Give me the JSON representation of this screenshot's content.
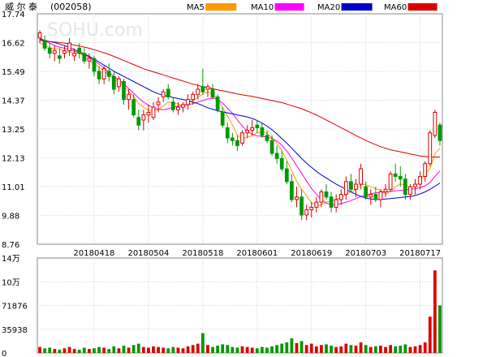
{
  "header": {
    "title": "威 尔 泰",
    "code": "(002058)"
  },
  "legend": [
    {
      "name": "MA5",
      "color": "#ff9900"
    },
    {
      "name": "MA10",
      "color": "#ff00ff"
    },
    {
      "name": "MA20",
      "color": "#0000cc"
    },
    {
      "name": "MA60",
      "color": "#dd0000"
    }
  ],
  "watermark": "SOHU.com",
  "colors": {
    "up": "#dd0000",
    "down": "#009900",
    "grid": "#d0d0d0",
    "axis": "#888888"
  },
  "chart_data": [
    {
      "type": "candlestick",
      "title": "",
      "yticks": [
        "17.74",
        "16.62",
        "15.49",
        "14.37",
        "13.25",
        "12.13",
        "11.01",
        "9.88",
        "8.76"
      ],
      "ytick_values": [
        17.74,
        16.62,
        15.49,
        14.37,
        13.25,
        12.13,
        11.01,
        9.88,
        8.76
      ],
      "ylim": [
        8.76,
        17.74
      ],
      "xtick_labels": [
        "20180418",
        "20180504",
        "20180518",
        "20180601",
        "20180619",
        "20180703",
        "20180717"
      ],
      "xtick_index": [
        11,
        22,
        33,
        44,
        55,
        66,
        77
      ],
      "ohlc": [
        [
          16.8,
          17.1,
          16.6,
          17.0
        ],
        [
          16.7,
          16.9,
          16.3,
          16.4
        ],
        [
          16.4,
          16.6,
          16.0,
          16.2
        ],
        [
          16.2,
          16.5,
          15.9,
          16.3
        ],
        [
          16.1,
          16.4,
          15.8,
          16.0
        ],
        [
          16.2,
          16.5,
          16.0,
          16.3
        ],
        [
          16.3,
          16.8,
          16.1,
          16.6
        ],
        [
          16.1,
          16.4,
          15.9,
          16.2
        ],
        [
          16.4,
          16.6,
          16.0,
          16.2
        ],
        [
          16.2,
          16.4,
          15.8,
          15.9
        ],
        [
          15.9,
          16.2,
          15.6,
          16.0
        ],
        [
          16.0,
          16.1,
          15.3,
          15.5
        ],
        [
          15.5,
          15.7,
          15.0,
          15.2
        ],
        [
          15.2,
          15.7,
          15.0,
          15.6
        ],
        [
          15.5,
          15.8,
          15.1,
          15.3
        ],
        [
          15.3,
          15.5,
          14.6,
          14.8
        ],
        [
          14.9,
          15.3,
          14.7,
          15.2
        ],
        [
          15.1,
          15.2,
          14.2,
          14.4
        ],
        [
          14.4,
          14.8,
          14.0,
          14.6
        ],
        [
          14.4,
          14.6,
          13.7,
          13.8
        ],
        [
          13.7,
          14.0,
          13.2,
          13.4
        ],
        [
          13.6,
          14.0,
          13.2,
          13.8
        ],
        [
          13.8,
          14.2,
          13.5,
          13.9
        ],
        [
          13.7,
          14.3,
          13.6,
          14.1
        ],
        [
          14.2,
          14.5,
          13.9,
          14.3
        ],
        [
          14.5,
          14.8,
          14.3,
          14.7
        ],
        [
          14.8,
          15.0,
          14.4,
          14.5
        ],
        [
          14.3,
          14.5,
          13.9,
          14.0
        ],
        [
          14.0,
          14.3,
          13.8,
          14.1
        ],
        [
          14.1,
          14.3,
          13.9,
          14.2
        ],
        [
          14.2,
          14.6,
          14.0,
          14.4
        ],
        [
          14.4,
          14.7,
          14.2,
          14.6
        ],
        [
          14.6,
          15.0,
          14.4,
          14.8
        ],
        [
          14.9,
          15.6,
          14.6,
          14.7
        ],
        [
          14.8,
          15.0,
          14.5,
          14.9
        ],
        [
          14.8,
          15.0,
          14.4,
          14.5
        ],
        [
          14.5,
          14.6,
          13.9,
          14.0
        ],
        [
          13.9,
          14.1,
          13.3,
          13.4
        ],
        [
          13.3,
          13.5,
          12.7,
          12.9
        ],
        [
          12.9,
          13.1,
          12.6,
          12.8
        ],
        [
          12.8,
          13.0,
          12.4,
          12.6
        ],
        [
          12.7,
          13.2,
          12.6,
          13.1
        ],
        [
          13.1,
          13.4,
          12.9,
          13.2
        ],
        [
          13.2,
          13.6,
          13.0,
          13.3
        ],
        [
          13.4,
          13.6,
          13.1,
          13.3
        ],
        [
          13.3,
          13.5,
          12.9,
          13.0
        ],
        [
          13.0,
          13.2,
          12.7,
          12.8
        ],
        [
          12.8,
          13.0,
          12.2,
          12.3
        ],
        [
          12.3,
          12.6,
          11.9,
          12.1
        ],
        [
          12.1,
          12.4,
          11.6,
          11.7
        ],
        [
          11.7,
          12.0,
          11.1,
          11.2
        ],
        [
          11.2,
          11.5,
          10.4,
          10.5
        ],
        [
          10.5,
          11.0,
          10.2,
          10.6
        ],
        [
          10.6,
          10.9,
          9.7,
          9.9
        ],
        [
          9.9,
          10.3,
          9.7,
          10.1
        ],
        [
          10.1,
          10.4,
          9.8,
          10.2
        ],
        [
          10.2,
          10.6,
          10.0,
          10.4
        ],
        [
          10.4,
          10.9,
          10.2,
          10.8
        ],
        [
          10.8,
          11.1,
          10.5,
          10.6
        ],
        [
          10.6,
          10.8,
          10.0,
          10.2
        ],
        [
          10.2,
          10.7,
          10.0,
          10.5
        ],
        [
          10.5,
          10.9,
          10.3,
          10.7
        ],
        [
          10.7,
          11.4,
          10.5,
          11.2
        ],
        [
          11.2,
          11.5,
          10.8,
          10.9
        ],
        [
          10.9,
          11.3,
          10.6,
          11.1
        ],
        [
          11.1,
          11.9,
          10.9,
          11.7
        ],
        [
          11.0,
          11.2,
          10.5,
          10.6
        ],
        [
          10.6,
          10.9,
          10.3,
          10.7
        ],
        [
          10.7,
          11.0,
          10.4,
          10.5
        ],
        [
          10.5,
          10.9,
          10.2,
          10.8
        ],
        [
          10.8,
          11.1,
          10.6,
          10.9
        ],
        [
          10.9,
          11.6,
          10.8,
          11.5
        ],
        [
          11.5,
          11.9,
          11.2,
          11.4
        ],
        [
          11.4,
          11.8,
          11.0,
          11.3
        ],
        [
          11.3,
          11.5,
          10.5,
          10.7
        ],
        [
          10.7,
          11.1,
          10.5,
          11.0
        ],
        [
          11.0,
          11.3,
          10.7,
          11.1
        ],
        [
          11.1,
          11.6,
          10.9,
          11.4
        ],
        [
          11.4,
          12.0,
          11.2,
          11.9
        ],
        [
          11.9,
          13.2,
          11.8,
          13.1
        ],
        [
          13.0,
          14.0,
          12.9,
          13.9
        ],
        [
          13.4,
          13.5,
          12.6,
          12.8
        ]
      ],
      "ma5": [
        16.6,
        16.5,
        16.42,
        16.36,
        16.38,
        16.28,
        16.24,
        16.2,
        16.18,
        16.1,
        15.92,
        15.8,
        15.66,
        15.52,
        15.35,
        15.2,
        15.06,
        14.9,
        14.72,
        14.52,
        14.24,
        14.1,
        13.98,
        13.96,
        14.0,
        14.15,
        14.3,
        14.26,
        14.22,
        14.18,
        14.24,
        14.36,
        14.5,
        14.6,
        14.7,
        14.62,
        14.4,
        14.1,
        13.76,
        13.4,
        13.0,
        12.86,
        12.92,
        13.0,
        13.1,
        13.14,
        13.08,
        12.92,
        12.68,
        12.4,
        12.04,
        11.62,
        11.22,
        10.9,
        10.64,
        10.38,
        10.26,
        10.3,
        10.4,
        10.44,
        10.52,
        10.56,
        10.72,
        10.8,
        10.88,
        11.1,
        11.08,
        11.0,
        10.92,
        10.88,
        10.72,
        10.82,
        10.98,
        11.12,
        11.04,
        10.98,
        11.0,
        11.2,
        11.5,
        11.7,
        12.3,
        12.5
      ],
      "ma10": [
        16.8,
        16.7,
        16.6,
        16.5,
        16.44,
        16.4,
        16.34,
        16.28,
        16.22,
        16.16,
        16.04,
        15.92,
        15.78,
        15.62,
        15.46,
        15.3,
        15.15,
        15.0,
        14.82,
        14.64,
        14.46,
        14.3,
        14.18,
        14.08,
        14.02,
        14.0,
        14.04,
        14.1,
        14.14,
        14.16,
        14.2,
        14.24,
        14.3,
        14.36,
        14.42,
        14.46,
        14.4,
        14.26,
        14.06,
        13.86,
        13.6,
        13.36,
        13.18,
        13.04,
        12.98,
        12.96,
        12.94,
        12.88,
        12.78,
        12.62,
        12.4,
        12.12,
        11.82,
        11.52,
        11.22,
        10.94,
        10.7,
        10.5,
        10.36,
        10.3,
        10.3,
        10.34,
        10.4,
        10.46,
        10.54,
        10.62,
        10.68,
        10.72,
        10.76,
        10.78,
        10.8,
        10.82,
        10.84,
        10.86,
        10.88,
        10.9,
        10.92,
        10.96,
        11.04,
        11.16,
        11.4,
        11.62
      ],
      "ma20": [
        16.75,
        16.7,
        16.66,
        16.62,
        16.56,
        16.5,
        16.42,
        16.34,
        16.26,
        16.18,
        16.08,
        15.98,
        15.86,
        15.74,
        15.62,
        15.5,
        15.4,
        15.3,
        15.2,
        15.1,
        15.0,
        14.9,
        14.8,
        14.7,
        14.62,
        14.56,
        14.52,
        14.48,
        14.44,
        14.4,
        14.36,
        14.3,
        14.24,
        14.16,
        14.08,
        14.02,
        13.96,
        13.92,
        13.88,
        13.84,
        13.8,
        13.76,
        13.72,
        13.66,
        13.58,
        13.48,
        13.36,
        13.22,
        13.06,
        12.88,
        12.7,
        12.5,
        12.3,
        12.1,
        11.92,
        11.76,
        11.6,
        11.46,
        11.34,
        11.22,
        11.1,
        11.0,
        10.9,
        10.8,
        10.7,
        10.62,
        10.56,
        10.52,
        10.5,
        10.5,
        10.52,
        10.54,
        10.56,
        10.58,
        10.6,
        10.62,
        10.66,
        10.72,
        10.8,
        10.9,
        11.02,
        11.14
      ],
      "ma60": [
        16.7,
        16.68,
        16.66,
        16.64,
        16.62,
        16.6,
        16.56,
        16.52,
        16.48,
        16.44,
        16.4,
        16.34,
        16.28,
        16.22,
        16.16,
        16.08,
        16.0,
        15.92,
        15.84,
        15.76,
        15.68,
        15.6,
        15.54,
        15.48,
        15.42,
        15.36,
        15.3,
        15.24,
        15.18,
        15.12,
        15.06,
        15.0,
        14.95,
        14.9,
        14.86,
        14.82,
        14.78,
        14.74,
        14.7,
        14.66,
        14.62,
        14.58,
        14.55,
        14.52,
        14.48,
        14.44,
        14.4,
        14.36,
        14.32,
        14.28,
        14.22,
        14.16,
        14.1,
        14.04,
        13.96,
        13.88,
        13.8,
        13.7,
        13.6,
        13.5,
        13.4,
        13.3,
        13.2,
        13.1,
        13.0,
        12.9,
        12.8,
        12.72,
        12.64,
        12.56,
        12.5,
        12.44,
        12.4,
        12.36,
        12.32,
        12.28,
        12.24,
        12.2,
        12.18,
        12.16,
        12.16,
        12.16
      ]
    },
    {
      "type": "bar",
      "title": "",
      "yticks": [
        "14万",
        "10万",
        "71876",
        "35938",
        "0"
      ],
      "ytick_values": [
        143752,
        107814,
        71876,
        35938,
        0
      ],
      "ylim": [
        0,
        143752
      ],
      "volume": [
        9000,
        7000,
        8000,
        6000,
        5000,
        7000,
        9000,
        6000,
        5000,
        8000,
        6000,
        7000,
        9000,
        8000,
        6000,
        10000,
        7000,
        11000,
        8000,
        12000,
        14000,
        9000,
        8000,
        10000,
        9000,
        8000,
        7000,
        9000,
        8000,
        7000,
        10000,
        12000,
        14000,
        30000,
        12000,
        9000,
        11000,
        13000,
        12000,
        9000,
        8000,
        10000,
        9000,
        8000,
        7000,
        9000,
        8000,
        10000,
        12000,
        14000,
        16000,
        22000,
        15000,
        18000,
        12000,
        14000,
        10000,
        12000,
        13000,
        11000,
        9000,
        10000,
        14000,
        12000,
        11000,
        16000,
        12000,
        9000,
        10000,
        11000,
        9000,
        12000,
        10000,
        11000,
        13000,
        9000,
        10000,
        12000,
        16000,
        55000,
        125000,
        72000
      ]
    }
  ]
}
